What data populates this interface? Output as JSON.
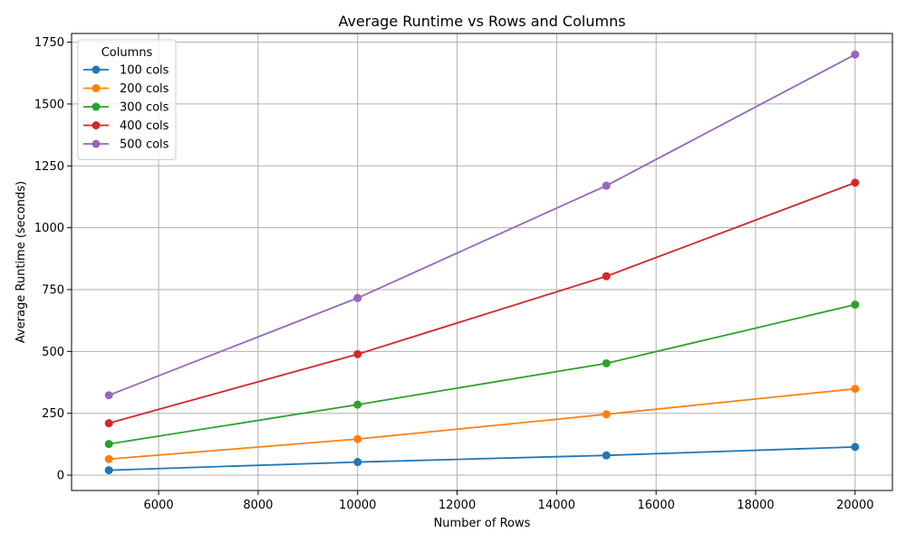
{
  "chart_data": {
    "type": "line",
    "title": "Average Runtime vs Rows and Columns",
    "xlabel": "Number of Rows",
    "ylabel": "Average Runtime (seconds)",
    "x": [
      5000,
      10000,
      15000,
      20000
    ],
    "xlim": [
      4250,
      20750
    ],
    "ylim": [
      -62,
      1785
    ],
    "xticks": [
      6000,
      8000,
      10000,
      12000,
      14000,
      16000,
      18000,
      20000
    ],
    "yticks": [
      0,
      250,
      500,
      750,
      1000,
      1250,
      1500,
      1750
    ],
    "grid": true,
    "legend": {
      "title": "Columns",
      "placement": "top-left"
    },
    "series": [
      {
        "name": "100 cols",
        "color": "#1f77b4",
        "values": [
          20,
          53,
          80,
          114
        ]
      },
      {
        "name": "200 cols",
        "color": "#ff7f0e",
        "values": [
          65,
          146,
          246,
          349
        ]
      },
      {
        "name": "300 cols",
        "color": "#2ca02c",
        "values": [
          126,
          285,
          452,
          689
        ]
      },
      {
        "name": "400 cols",
        "color": "#d62728",
        "values": [
          210,
          489,
          804,
          1182
        ]
      },
      {
        "name": "500 cols",
        "color": "#9467bd",
        "values": [
          323,
          716,
          1170,
          1700
        ]
      }
    ]
  }
}
